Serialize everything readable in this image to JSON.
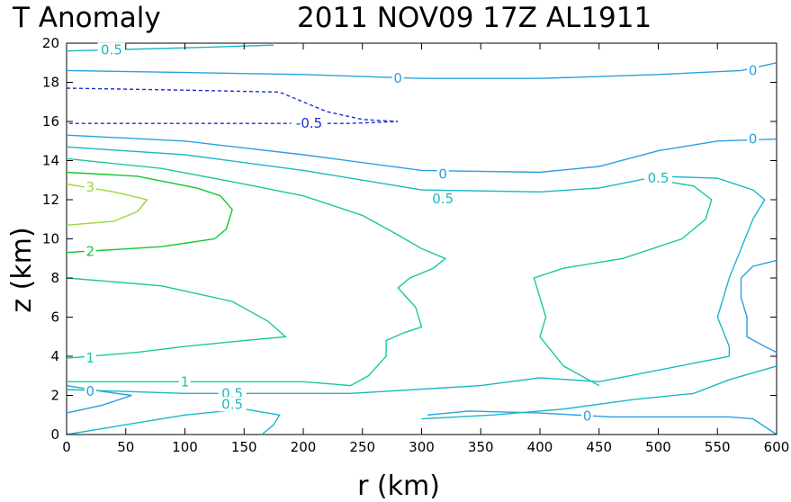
{
  "chart_data": {
    "type": "contour",
    "title_left": "T Anomaly",
    "title_right": "2011  NOV09  17Z   AL1911",
    "xlabel": "r  (km)",
    "ylabel": "z  (km)",
    "xlim": [
      0,
      600
    ],
    "ylim": [
      0,
      20
    ],
    "x_ticks": [
      "0",
      "50",
      "100",
      "150",
      "200",
      "250",
      "300",
      "350",
      "400",
      "450",
      "500",
      "550",
      "600"
    ],
    "y_ticks": [
      "0",
      "2",
      "4",
      "6",
      "8",
      "10",
      "12",
      "14",
      "16",
      "18",
      "20"
    ],
    "grid": false,
    "contours": [
      {
        "level": -0.5,
        "label": "-0.5",
        "color": "#1a2fd6",
        "dashed": true,
        "path": [
          [
            0,
            17.7
          ],
          [
            100,
            17.6
          ],
          [
            180,
            17.5
          ],
          [
            200,
            17.0
          ],
          [
            220,
            16.5
          ],
          [
            250,
            16.1
          ],
          [
            280,
            16.0
          ],
          [
            240,
            15.9
          ],
          [
            0,
            15.9
          ]
        ]
      },
      {
        "level": 0,
        "label": "0",
        "color": "#2a9fe0",
        "dashed": false,
        "path": [
          [
            0,
            18.6
          ],
          [
            100,
            18.5
          ],
          [
            200,
            18.4
          ],
          [
            300,
            18.2
          ],
          [
            400,
            18.2
          ],
          [
            500,
            18.4
          ],
          [
            570,
            18.6
          ],
          [
            600,
            19.0
          ]
        ]
      },
      {
        "level": 0,
        "label": "0",
        "color": "#2a9fe0",
        "dashed": false,
        "path": [
          [
            0,
            15.3
          ],
          [
            100,
            15.0
          ],
          [
            200,
            14.3
          ],
          [
            300,
            13.5
          ],
          [
            400,
            13.4
          ],
          [
            450,
            13.7
          ],
          [
            500,
            14.5
          ],
          [
            550,
            15.0
          ],
          [
            600,
            15.1
          ]
        ]
      },
      {
        "level": 0,
        "label": "0",
        "color": "#2a9fe0",
        "dashed": false,
        "path": [
          [
            0,
            1.1
          ],
          [
            30,
            1.5
          ],
          [
            55,
            2.0
          ],
          [
            30,
            2.2
          ],
          [
            0,
            2.5
          ]
        ]
      },
      {
        "level": 0,
        "label": "0",
        "color": "#2a9fe0",
        "dashed": false,
        "path": [
          [
            305,
            1.0
          ],
          [
            340,
            1.2
          ],
          [
            400,
            1.1
          ],
          [
            460,
            0.9
          ],
          [
            560,
            0.9
          ],
          [
            580,
            0.8
          ],
          [
            600,
            0
          ]
        ]
      },
      {
        "level": 0,
        "label": "0",
        "color": "#2a9fe0",
        "dashed": false,
        "path": [
          [
            600,
            8.9
          ],
          [
            580,
            8.6
          ],
          [
            570,
            8.0
          ],
          [
            570,
            7.0
          ],
          [
            575,
            6.0
          ],
          [
            575,
            5.0
          ],
          [
            590,
            4.5
          ],
          [
            600,
            4.2
          ]
        ]
      },
      {
        "level": 0.5,
        "label": "0.5",
        "color": "#1ab8c8",
        "dashed": false,
        "path": [
          [
            0,
            19.6
          ],
          [
            120,
            19.8
          ],
          [
            175,
            19.9
          ]
        ]
      },
      {
        "level": 0.5,
        "label": "0.5",
        "color": "#1ab8c8",
        "dashed": false,
        "path": [
          [
            0,
            14.7
          ],
          [
            100,
            14.3
          ],
          [
            200,
            13.5
          ],
          [
            300,
            12.5
          ],
          [
            400,
            12.4
          ],
          [
            450,
            12.6
          ],
          [
            500,
            13.2
          ],
          [
            550,
            13.1
          ],
          [
            580,
            12.5
          ],
          [
            590,
            12.0
          ],
          [
            580,
            11.0
          ],
          [
            560,
            8.0
          ],
          [
            550,
            6.0
          ],
          [
            560,
            4.5
          ],
          [
            560,
            4.0
          ],
          [
            450,
            2.7
          ],
          [
            400,
            2.9
          ],
          [
            350,
            2.5
          ],
          [
            240,
            2.1
          ],
          [
            100,
            2.1
          ],
          [
            0,
            2.3
          ]
        ]
      },
      {
        "level": 0.5,
        "label": "0.5",
        "color": "#1ab8c8",
        "dashed": false,
        "path": [
          [
            0,
            0
          ],
          [
            50,
            0.5
          ],
          [
            100,
            1.0
          ],
          [
            150,
            1.3
          ],
          [
            180,
            1.0
          ],
          [
            175,
            0.5
          ],
          [
            165,
            0
          ]
        ]
      },
      {
        "level": 0.5,
        "label": "0.5",
        "color": "#1ab8c8",
        "dashed": false,
        "path": [
          [
            300,
            0.8
          ],
          [
            360,
            1.0
          ],
          [
            420,
            1.3
          ],
          [
            480,
            1.8
          ],
          [
            530,
            2.1
          ],
          [
            560,
            2.8
          ],
          [
            600,
            3.5
          ]
        ]
      },
      {
        "level": 1,
        "label": "1",
        "color": "#18c8a0",
        "dashed": false,
        "path": [
          [
            0,
            14.1
          ],
          [
            80,
            13.6
          ],
          [
            150,
            12.8
          ],
          [
            200,
            12.2
          ],
          [
            250,
            11.2
          ],
          [
            280,
            10.2
          ],
          [
            300,
            9.5
          ],
          [
            320,
            9.0
          ],
          [
            310,
            8.5
          ],
          [
            290,
            8.0
          ],
          [
            280,
            7.5
          ],
          [
            295,
            6.5
          ],
          [
            300,
            5.5
          ],
          [
            285,
            5.2
          ],
          [
            270,
            4.8
          ],
          [
            270,
            4.0
          ],
          [
            255,
            3.0
          ],
          [
            240,
            2.5
          ],
          [
            200,
            2.7
          ],
          [
            100,
            2.7
          ],
          [
            0,
            2.7
          ]
        ]
      },
      {
        "level": 1,
        "label": "1",
        "color": "#18c8a0",
        "dashed": false,
        "path": [
          [
            0,
            8.0
          ],
          [
            80,
            7.6
          ],
          [
            140,
            6.8
          ],
          [
            170,
            5.8
          ],
          [
            185,
            5.0
          ],
          [
            150,
            4.8
          ],
          [
            100,
            4.5
          ],
          [
            60,
            4.2
          ],
          [
            0,
            3.9
          ]
        ]
      },
      {
        "level": 1,
        "label": "1",
        "color": "#18c8a0",
        "dashed": false,
        "path": [
          [
            450,
            2.5
          ],
          [
            420,
            3.5
          ],
          [
            400,
            5.0
          ],
          [
            405,
            6.0
          ],
          [
            400,
            7.0
          ],
          [
            395,
            8.0
          ],
          [
            420,
            8.5
          ],
          [
            470,
            9.0
          ],
          [
            520,
            10.0
          ],
          [
            540,
            11.0
          ],
          [
            545,
            12.0
          ],
          [
            530,
            12.7
          ],
          [
            500,
            13.0
          ]
        ]
      },
      {
        "level": 2,
        "label": "2",
        "color": "#12c830",
        "dashed": false,
        "path": [
          [
            0,
            13.4
          ],
          [
            60,
            13.2
          ],
          [
            110,
            12.6
          ],
          [
            130,
            12.2
          ],
          [
            140,
            11.5
          ],
          [
            135,
            10.5
          ],
          [
            125,
            10.0
          ],
          [
            80,
            9.6
          ],
          [
            0,
            9.3
          ]
        ]
      },
      {
        "level": 3,
        "label": "3",
        "color": "#9ad835",
        "dashed": false,
        "path": [
          [
            0,
            12.8
          ],
          [
            40,
            12.4
          ],
          [
            68,
            12.0
          ],
          [
            60,
            11.4
          ],
          [
            40,
            10.9
          ],
          [
            0,
            10.7
          ]
        ]
      }
    ],
    "contour_labels": [
      {
        "text": "0.5",
        "x": 38,
        "y": 19.65,
        "color": "#1ab8c8"
      },
      {
        "text": "0",
        "x": 280,
        "y": 18.2,
        "color": "#2a9fe0"
      },
      {
        "text": "0",
        "x": 580,
        "y": 18.6,
        "color": "#2a9fe0"
      },
      {
        "text": "-0.5",
        "x": 205,
        "y": 15.9,
        "color": "#1a2fd6"
      },
      {
        "text": "0",
        "x": 580,
        "y": 15.1,
        "color": "#2a9fe0"
      },
      {
        "text": "0",
        "x": 318,
        "y": 13.3,
        "color": "#2a9fe0"
      },
      {
        "text": "0.5",
        "x": 500,
        "y": 13.1,
        "color": "#1ab8c8"
      },
      {
        "text": "3",
        "x": 20,
        "y": 12.65,
        "color": "#9ad835"
      },
      {
        "text": "0.5",
        "x": 318,
        "y": 12.05,
        "color": "#1ab8c8"
      },
      {
        "text": "2",
        "x": 20,
        "y": 9.35,
        "color": "#12c830"
      },
      {
        "text": "1",
        "x": 20,
        "y": 3.9,
        "color": "#18c8a0"
      },
      {
        "text": "1",
        "x": 100,
        "y": 2.7,
        "color": "#18c8a0"
      },
      {
        "text": "0",
        "x": 20,
        "y": 2.2,
        "color": "#2a9fe0"
      },
      {
        "text": "0.5",
        "x": 140,
        "y": 2.1,
        "color": "#1ab8c8"
      },
      {
        "text": "0.5",
        "x": 140,
        "y": 1.55,
        "color": "#1ab8c8"
      },
      {
        "text": "0",
        "x": 440,
        "y": 0.95,
        "color": "#2a9fe0"
      }
    ]
  }
}
